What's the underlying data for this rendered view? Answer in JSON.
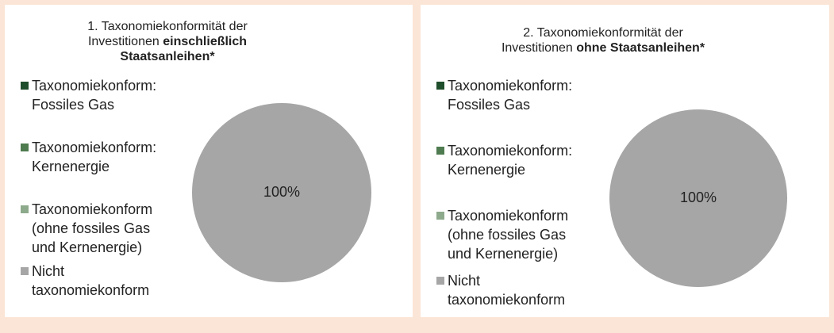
{
  "chart_data": [
    {
      "type": "pie",
      "title": "1. Taxonomiekonformität der Investitionen",
      "title_bold": "einschließlich Staatsanleihen*",
      "categories": [
        "Taxonomiekonform: Fossiles Gas",
        "Taxonomiekonform: Kernenergie",
        "Taxonomiekonform (ohne fossiles Gas und Kernenergie)",
        "Nicht taxonomiekonform"
      ],
      "values": [
        0,
        0,
        0,
        100
      ],
      "value_labels": [
        null,
        null,
        null,
        "100%"
      ],
      "colors": [
        "#1f4e2c",
        "#4e7b4f",
        "#8eaa8c",
        "#a6a6a6"
      ]
    },
    {
      "type": "pie",
      "title": "2. Taxonomiekonformität der Investitionen",
      "title_bold": "ohne Staatsanleihen*",
      "categories": [
        "Taxonomiekonform: Fossiles Gas",
        "Taxonomiekonform: Kernenergie",
        "Taxonomiekonform (ohne fossiles Gas und Kernenergie)",
        "Nicht taxonomiekonform"
      ],
      "values": [
        0,
        0,
        0,
        100
      ],
      "value_labels": [
        null,
        null,
        null,
        "100%"
      ],
      "colors": [
        "#1f4e2c",
        "#4e7b4f",
        "#8eaa8c",
        "#a6a6a6"
      ]
    }
  ]
}
